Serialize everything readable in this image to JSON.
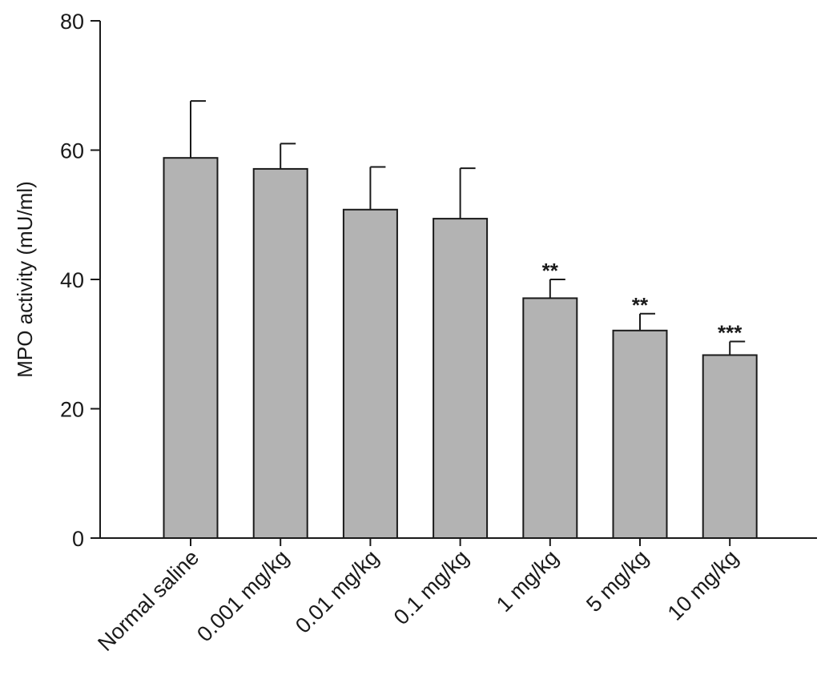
{
  "chart_data": {
    "type": "bar",
    "title": "",
    "xlabel": "",
    "ylabel": "MPO activity (mU/ml)",
    "ylim": [
      0,
      80
    ],
    "yticks": [
      0,
      20,
      40,
      60,
      80
    ],
    "grid": false,
    "categories": [
      "Normal saline",
      "0.001 mg/kg",
      "0.01 mg/kg",
      "0.1 mg/kg",
      "1 mg/kg",
      "5 mg/kg",
      "10 mg/kg"
    ],
    "values": [
      58.8,
      57.1,
      50.8,
      49.4,
      37.1,
      32.1,
      28.3
    ],
    "errors": [
      8.8,
      3.9,
      6.6,
      7.8,
      2.9,
      2.6,
      2.1
    ],
    "annotations": [
      "",
      "",
      "",
      "",
      "**",
      "**",
      "***"
    ],
    "bar_color": "#b3b3b3",
    "edge_color": "#1a1a1a"
  }
}
